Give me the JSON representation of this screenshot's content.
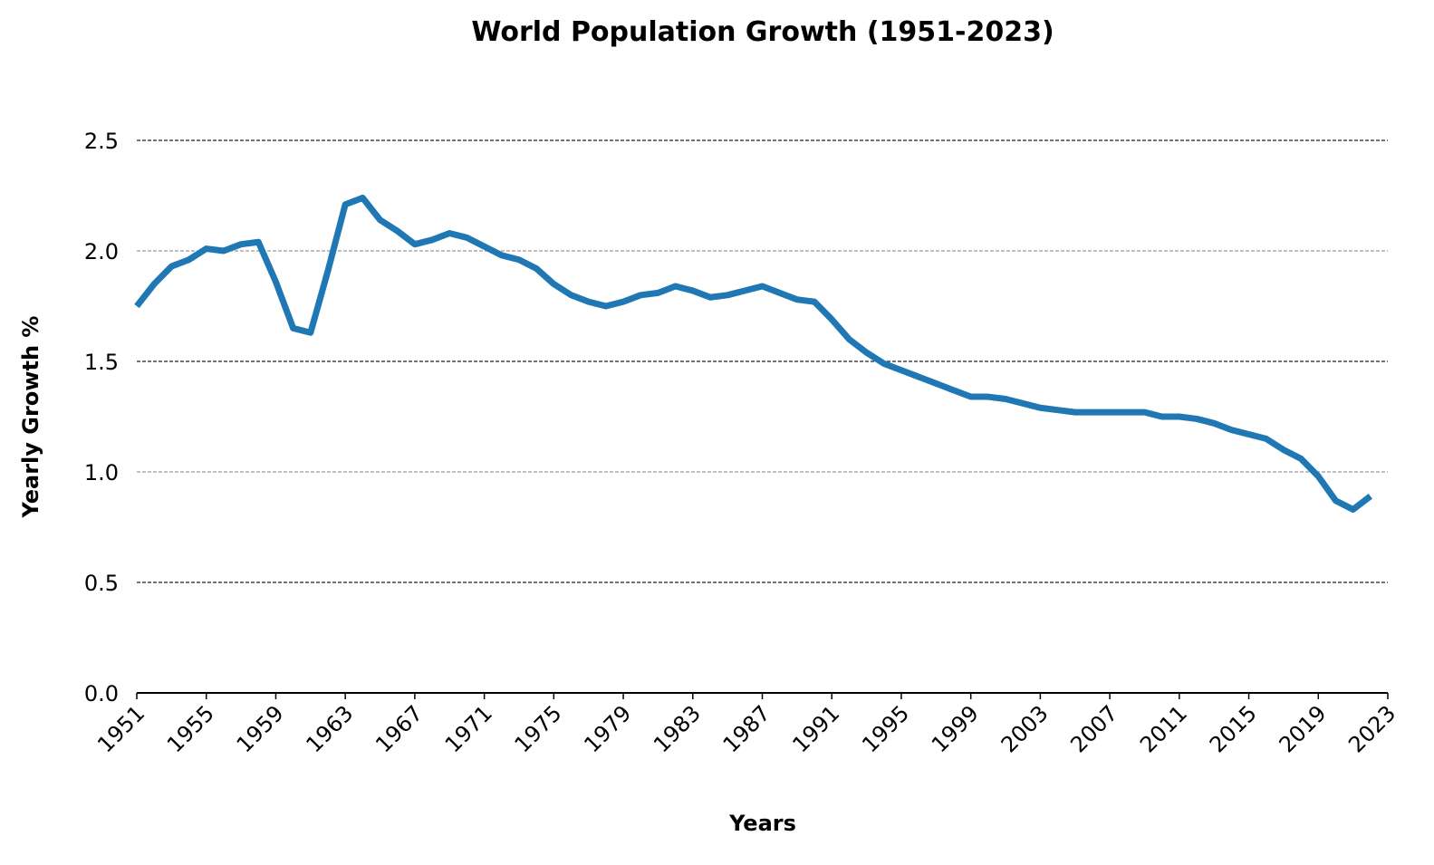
{
  "chart_data": {
    "type": "line",
    "title": "World Population Growth (1951-2023)",
    "x_label": "Years",
    "y_label": "Yearly Growth %",
    "x": [
      1951,
      1952,
      1953,
      1954,
      1955,
      1956,
      1957,
      1958,
      1959,
      1960,
      1961,
      1962,
      1963,
      1964,
      1965,
      1966,
      1967,
      1968,
      1969,
      1970,
      1971,
      1972,
      1973,
      1974,
      1975,
      1976,
      1977,
      1978,
      1979,
      1980,
      1981,
      1982,
      1983,
      1984,
      1985,
      1986,
      1987,
      1988,
      1989,
      1990,
      1991,
      1992,
      1993,
      1994,
      1995,
      1996,
      1997,
      1998,
      1999,
      2000,
      2001,
      2002,
      2003,
      2004,
      2005,
      2006,
      2007,
      2008,
      2009,
      2010,
      2011,
      2012,
      2013,
      2014,
      2015,
      2016,
      2017,
      2018,
      2019,
      2020,
      2021,
      2022
    ],
    "values": [
      1.75,
      1.85,
      1.93,
      1.96,
      2.01,
      2.0,
      2.03,
      2.04,
      1.86,
      1.65,
      1.63,
      1.91,
      2.21,
      2.24,
      2.14,
      2.09,
      2.03,
      2.05,
      2.08,
      2.06,
      2.02,
      1.98,
      1.96,
      1.92,
      1.85,
      1.8,
      1.77,
      1.75,
      1.77,
      1.8,
      1.81,
      1.84,
      1.82,
      1.79,
      1.8,
      1.82,
      1.84,
      1.81,
      1.78,
      1.77,
      1.69,
      1.6,
      1.54,
      1.49,
      1.46,
      1.43,
      1.4,
      1.37,
      1.34,
      1.34,
      1.33,
      1.31,
      1.29,
      1.28,
      1.27,
      1.27,
      1.27,
      1.27,
      1.27,
      1.25,
      1.25,
      1.24,
      1.22,
      1.19,
      1.17,
      1.15,
      1.1,
      1.06,
      0.98,
      0.87,
      0.83,
      0.89
    ],
    "color": "#1f77b4",
    "xlim": [
      1951,
      2023
    ],
    "xticks": [
      1951,
      1955,
      1959,
      1963,
      1967,
      1971,
      1975,
      1979,
      1983,
      1987,
      1991,
      1995,
      1999,
      2003,
      2007,
      2011,
      2015,
      2019,
      2023
    ],
    "ylim": [
      0,
      2.75
    ],
    "yticks": [
      {
        "value": 0,
        "label": "0.0"
      },
      0.5,
      {
        "value": 1,
        "label": "1.0"
      },
      1.5,
      {
        "value": 2,
        "label": "2.0"
      },
      2.5
    ],
    "grid": true
  }
}
